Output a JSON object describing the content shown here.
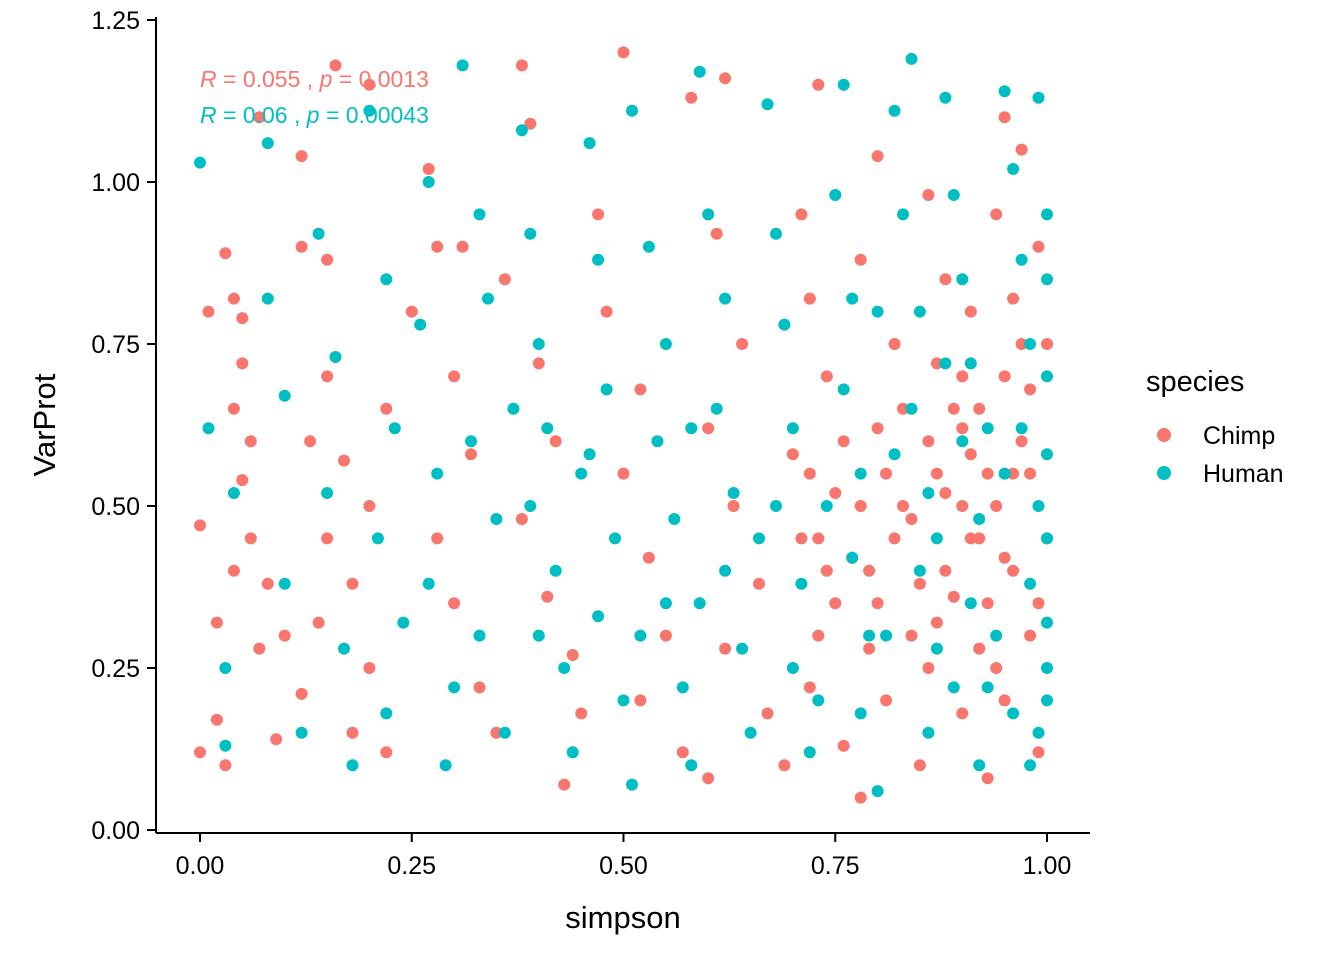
{
  "chart_data": {
    "type": "scatter",
    "xlabel": "simpson",
    "ylabel": "VarProt",
    "xlim": [
      -0.05,
      1.05
    ],
    "ylim": [
      -0.01,
      1.25
    ],
    "x_ticks": [
      0.0,
      0.25,
      0.5,
      0.75,
      1.0
    ],
    "x_tick_labels": [
      "0.00",
      "0.25",
      "0.50",
      "0.75",
      "1.00"
    ],
    "y_ticks": [
      0.0,
      0.25,
      0.5,
      0.75,
      1.0,
      1.25
    ],
    "y_tick_labels": [
      "0.00",
      "0.25",
      "0.50",
      "0.75",
      "1.00",
      "1.25"
    ],
    "grid": false,
    "legend": {
      "title": "species",
      "placement": "right",
      "entries": [
        {
          "label": "Chimp",
          "color": "#F8766D"
        },
        {
          "label": "Human",
          "color": "#00BFC4"
        }
      ]
    },
    "annotations": [
      {
        "series": "Chimp",
        "r_label": "R",
        "r_value": "= 0.055 ,",
        "p_label": "p",
        "p_value": "= 0.0013",
        "color": "#F8766D"
      },
      {
        "series": "Human",
        "r_label": "R",
        "r_value": "= 0.06 ,",
        "p_label": "p",
        "p_value": "= 0.00043",
        "color": "#00BFC4"
      }
    ],
    "series": [
      {
        "name": "Chimp",
        "color": "#F8766D",
        "points": [
          [
            0.0,
            0.47
          ],
          [
            0.01,
            0.8
          ],
          [
            0.02,
            0.32
          ],
          [
            0.03,
            0.89
          ],
          [
            0.04,
            0.82
          ],
          [
            0.05,
            0.79
          ],
          [
            0.05,
            0.72
          ],
          [
            0.06,
            0.6
          ],
          [
            0.04,
            0.65
          ],
          [
            0.05,
            0.54
          ],
          [
            0.06,
            0.45
          ],
          [
            0.04,
            0.4
          ],
          [
            0.07,
            0.28
          ],
          [
            0.08,
            0.38
          ],
          [
            0.1,
            0.3
          ],
          [
            0.12,
            0.21
          ],
          [
            0.09,
            0.14
          ],
          [
            0.03,
            0.1
          ],
          [
            0.0,
            0.12
          ],
          [
            0.02,
            0.17
          ],
          [
            0.07,
            1.1
          ],
          [
            0.12,
            1.04
          ],
          [
            0.15,
            0.88
          ],
          [
            0.12,
            0.9
          ],
          [
            0.16,
            1.18
          ],
          [
            0.2,
            1.15
          ],
          [
            0.15,
            0.7
          ],
          [
            0.13,
            0.6
          ],
          [
            0.15,
            0.45
          ],
          [
            0.14,
            0.32
          ],
          [
            0.18,
            0.38
          ],
          [
            0.2,
            0.5
          ],
          [
            0.17,
            0.57
          ],
          [
            0.22,
            0.65
          ],
          [
            0.2,
            0.25
          ],
          [
            0.18,
            0.15
          ],
          [
            0.22,
            0.12
          ],
          [
            0.25,
            0.8
          ],
          [
            0.28,
            0.9
          ],
          [
            0.27,
            1.02
          ],
          [
            0.3,
            0.7
          ],
          [
            0.32,
            0.58
          ],
          [
            0.28,
            0.45
          ],
          [
            0.3,
            0.35
          ],
          [
            0.33,
            0.22
          ],
          [
            0.35,
            0.15
          ],
          [
            0.31,
            0.9
          ],
          [
            0.38,
            1.18
          ],
          [
            0.39,
            1.09
          ],
          [
            0.36,
            0.85
          ],
          [
            0.4,
            0.72
          ],
          [
            0.42,
            0.6
          ],
          [
            0.38,
            0.48
          ],
          [
            0.41,
            0.36
          ],
          [
            0.44,
            0.27
          ],
          [
            0.45,
            0.18
          ],
          [
            0.43,
            0.07
          ],
          [
            0.47,
            0.95
          ],
          [
            0.5,
            1.2
          ],
          [
            0.48,
            0.8
          ],
          [
            0.52,
            0.68
          ],
          [
            0.5,
            0.55
          ],
          [
            0.53,
            0.42
          ],
          [
            0.55,
            0.3
          ],
          [
            0.52,
            0.2
          ],
          [
            0.57,
            0.12
          ],
          [
            0.6,
            0.08
          ],
          [
            0.58,
            1.13
          ],
          [
            0.62,
            1.16
          ],
          [
            0.61,
            0.92
          ],
          [
            0.64,
            0.75
          ],
          [
            0.6,
            0.62
          ],
          [
            0.63,
            0.5
          ],
          [
            0.66,
            0.38
          ],
          [
            0.62,
            0.28
          ],
          [
            0.67,
            0.18
          ],
          [
            0.69,
            0.1
          ],
          [
            0.73,
            1.15
          ],
          [
            0.71,
            0.95
          ],
          [
            0.72,
            0.82
          ],
          [
            0.74,
            0.7
          ],
          [
            0.7,
            0.58
          ],
          [
            0.73,
            0.45
          ],
          [
            0.75,
            0.35
          ],
          [
            0.72,
            0.22
          ],
          [
            0.76,
            0.13
          ],
          [
            0.78,
            0.05
          ],
          [
            0.8,
            1.04
          ],
          [
            0.78,
            0.88
          ],
          [
            0.82,
            0.75
          ],
          [
            0.8,
            0.62
          ],
          [
            0.83,
            0.5
          ],
          [
            0.79,
            0.4
          ],
          [
            0.84,
            0.3
          ],
          [
            0.81,
            0.2
          ],
          [
            0.85,
            0.1
          ],
          [
            0.86,
            0.98
          ],
          [
            0.88,
            0.85
          ],
          [
            0.87,
            0.72
          ],
          [
            0.9,
            0.62
          ],
          [
            0.88,
            0.52
          ],
          [
            0.91,
            0.45
          ],
          [
            0.89,
            0.36
          ],
          [
            0.92,
            0.28
          ],
          [
            0.9,
            0.18
          ],
          [
            0.93,
            0.08
          ],
          [
            0.95,
            1.1
          ],
          [
            0.94,
            0.95
          ],
          [
            0.96,
            0.82
          ],
          [
            0.95,
            0.7
          ],
          [
            0.97,
            0.6
          ],
          [
            0.94,
            0.5
          ],
          [
            0.96,
            0.4
          ],
          [
            0.98,
            0.3
          ],
          [
            0.95,
            0.2
          ],
          [
            0.99,
            0.12
          ],
          [
            0.97,
            1.05
          ],
          [
            0.99,
            0.9
          ],
          [
            1.0,
            0.75
          ],
          [
            0.98,
            0.55
          ],
          [
            1.0,
            0.45
          ],
          [
            0.99,
            0.35
          ],
          [
            0.86,
            0.6
          ],
          [
            0.87,
            0.55
          ],
          [
            0.88,
            0.4
          ],
          [
            0.89,
            0.65
          ],
          [
            0.9,
            0.5
          ],
          [
            0.91,
            0.58
          ],
          [
            0.92,
            0.45
          ],
          [
            0.93,
            0.55
          ],
          [
            0.84,
            0.48
          ],
          [
            0.85,
            0.38
          ],
          [
            0.86,
            0.25
          ],
          [
            0.87,
            0.32
          ],
          [
            0.9,
            0.7
          ],
          [
            0.91,
            0.8
          ],
          [
            0.92,
            0.65
          ],
          [
            0.93,
            0.35
          ],
          [
            0.94,
            0.25
          ],
          [
            0.95,
            0.42
          ],
          [
            0.96,
            0.55
          ],
          [
            0.97,
            0.75
          ],
          [
            0.98,
            0.68
          ],
          [
            0.83,
            0.65
          ],
          [
            0.82,
            0.45
          ],
          [
            0.81,
            0.55
          ],
          [
            0.8,
            0.35
          ],
          [
            0.79,
            0.28
          ],
          [
            0.78,
            0.5
          ],
          [
            0.77,
            0.42
          ],
          [
            0.76,
            0.6
          ],
          [
            0.75,
            0.52
          ],
          [
            0.74,
            0.4
          ],
          [
            0.73,
            0.3
          ],
          [
            0.72,
            0.55
          ],
          [
            0.71,
            0.45
          ]
        ]
      },
      {
        "name": "Human",
        "color": "#00BFC4",
        "points": [
          [
            0.0,
            1.03
          ],
          [
            0.01,
            0.62
          ],
          [
            0.04,
            0.52
          ],
          [
            0.03,
            0.25
          ],
          [
            0.03,
            0.13
          ],
          [
            0.08,
            1.06
          ],
          [
            0.1,
            0.67
          ],
          [
            0.08,
            0.82
          ],
          [
            0.1,
            0.38
          ],
          [
            0.12,
            0.15
          ],
          [
            0.14,
            0.92
          ],
          [
            0.16,
            0.73
          ],
          [
            0.15,
            0.52
          ],
          [
            0.17,
            0.28
          ],
          [
            0.18,
            0.1
          ],
          [
            0.2,
            1.11
          ],
          [
            0.22,
            0.85
          ],
          [
            0.23,
            0.62
          ],
          [
            0.21,
            0.45
          ],
          [
            0.24,
            0.32
          ],
          [
            0.22,
            0.18
          ],
          [
            0.27,
            1.0
          ],
          [
            0.26,
            0.78
          ],
          [
            0.28,
            0.55
          ],
          [
            0.27,
            0.38
          ],
          [
            0.3,
            0.22
          ],
          [
            0.29,
            0.1
          ],
          [
            0.31,
            1.18
          ],
          [
            0.33,
            0.95
          ],
          [
            0.34,
            0.82
          ],
          [
            0.32,
            0.6
          ],
          [
            0.35,
            0.48
          ],
          [
            0.33,
            0.3
          ],
          [
            0.36,
            0.15
          ],
          [
            0.38,
            1.08
          ],
          [
            0.39,
            0.92
          ],
          [
            0.4,
            0.75
          ],
          [
            0.41,
            0.62
          ],
          [
            0.39,
            0.5
          ],
          [
            0.42,
            0.4
          ],
          [
            0.43,
            0.25
          ],
          [
            0.44,
            0.12
          ],
          [
            0.46,
            1.06
          ],
          [
            0.47,
            0.88
          ],
          [
            0.48,
            0.68
          ],
          [
            0.46,
            0.58
          ],
          [
            0.49,
            0.45
          ],
          [
            0.47,
            0.33
          ],
          [
            0.5,
            0.2
          ],
          [
            0.51,
            0.07
          ],
          [
            0.51,
            1.11
          ],
          [
            0.53,
            0.9
          ],
          [
            0.55,
            0.75
          ],
          [
            0.54,
            0.6
          ],
          [
            0.56,
            0.48
          ],
          [
            0.55,
            0.35
          ],
          [
            0.57,
            0.22
          ],
          [
            0.58,
            0.1
          ],
          [
            0.59,
            1.17
          ],
          [
            0.6,
            0.95
          ],
          [
            0.62,
            0.82
          ],
          [
            0.61,
            0.65
          ],
          [
            0.63,
            0.52
          ],
          [
            0.62,
            0.4
          ],
          [
            0.64,
            0.28
          ],
          [
            0.65,
            0.15
          ],
          [
            0.67,
            1.12
          ],
          [
            0.68,
            0.92
          ],
          [
            0.69,
            0.78
          ],
          [
            0.7,
            0.62
          ],
          [
            0.68,
            0.5
          ],
          [
            0.71,
            0.38
          ],
          [
            0.7,
            0.25
          ],
          [
            0.72,
            0.12
          ],
          [
            0.76,
            1.15
          ],
          [
            0.75,
            0.98
          ],
          [
            0.77,
            0.82
          ],
          [
            0.76,
            0.68
          ],
          [
            0.78,
            0.55
          ],
          [
            0.77,
            0.42
          ],
          [
            0.79,
            0.3
          ],
          [
            0.78,
            0.18
          ],
          [
            0.8,
            0.06
          ],
          [
            0.82,
            1.11
          ],
          [
            0.84,
            1.19
          ],
          [
            0.83,
            0.95
          ],
          [
            0.85,
            0.8
          ],
          [
            0.84,
            0.65
          ],
          [
            0.86,
            0.52
          ],
          [
            0.85,
            0.4
          ],
          [
            0.87,
            0.28
          ],
          [
            0.86,
            0.15
          ],
          [
            0.88,
            1.13
          ],
          [
            0.89,
            0.98
          ],
          [
            0.9,
            0.85
          ],
          [
            0.91,
            0.72
          ],
          [
            0.9,
            0.6
          ],
          [
            0.92,
            0.48
          ],
          [
            0.91,
            0.35
          ],
          [
            0.93,
            0.22
          ],
          [
            0.92,
            0.1
          ],
          [
            0.95,
            1.14
          ],
          [
            0.96,
            1.02
          ],
          [
            0.97,
            0.88
          ],
          [
            0.98,
            0.75
          ],
          [
            0.97,
            0.62
          ],
          [
            0.99,
            0.5
          ],
          [
            0.98,
            0.38
          ],
          [
            1.0,
            0.25
          ],
          [
            0.99,
            0.15
          ],
          [
            0.98,
            0.1
          ],
          [
            0.99,
            1.13
          ],
          [
            1.0,
            0.95
          ],
          [
            1.0,
            0.85
          ],
          [
            1.0,
            0.7
          ],
          [
            1.0,
            0.58
          ],
          [
            1.0,
            0.45
          ],
          [
            1.0,
            0.32
          ],
          [
            1.0,
            0.2
          ],
          [
            0.93,
            0.62
          ],
          [
            0.94,
            0.3
          ],
          [
            0.95,
            0.55
          ],
          [
            0.96,
            0.18
          ],
          [
            0.88,
            0.72
          ],
          [
            0.87,
            0.45
          ],
          [
            0.89,
            0.22
          ],
          [
            0.82,
            0.58
          ],
          [
            0.81,
            0.3
          ],
          [
            0.8,
            0.8
          ],
          [
            0.74,
            0.5
          ],
          [
            0.73,
            0.2
          ],
          [
            0.66,
            0.45
          ],
          [
            0.58,
            0.62
          ],
          [
            0.59,
            0.35
          ],
          [
            0.52,
            0.3
          ],
          [
            0.45,
            0.55
          ],
          [
            0.4,
            0.3
          ],
          [
            0.37,
            0.65
          ]
        ]
      }
    ]
  }
}
